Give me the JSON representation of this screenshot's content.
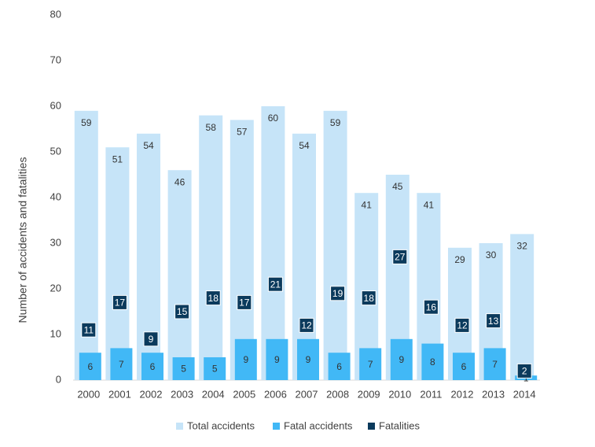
{
  "chart_data": {
    "type": "bar",
    "y_label": "Number of accidents and fatalities",
    "categories": [
      "2000",
      "2001",
      "2002",
      "2003",
      "2004",
      "2005",
      "2006",
      "2007",
      "2008",
      "2009",
      "2010",
      "2011",
      "2012",
      "2013",
      "2014"
    ],
    "series": [
      {
        "name": "Total accidents",
        "color": "#c6e4f8",
        "values": [
          59,
          51,
          54,
          46,
          58,
          57,
          60,
          54,
          59,
          41,
          45,
          41,
          29,
          30,
          32
        ]
      },
      {
        "name": "Fatal accidents",
        "color": "#41b8f6",
        "values": [
          6,
          7,
          6,
          5,
          5,
          9,
          9,
          9,
          6,
          7,
          9,
          8,
          6,
          7,
          1
        ]
      },
      {
        "name": "Fatalities",
        "color": "#0b3a5c",
        "values": [
          11,
          17,
          9,
          15,
          18,
          17,
          21,
          12,
          19,
          18,
          27,
          16,
          12,
          13,
          2
        ]
      }
    ],
    "ylim": [
      0,
      80
    ],
    "yticks": [
      0,
      10,
      20,
      30,
      40,
      50,
      60,
      70,
      80
    ],
    "grid": false
  }
}
